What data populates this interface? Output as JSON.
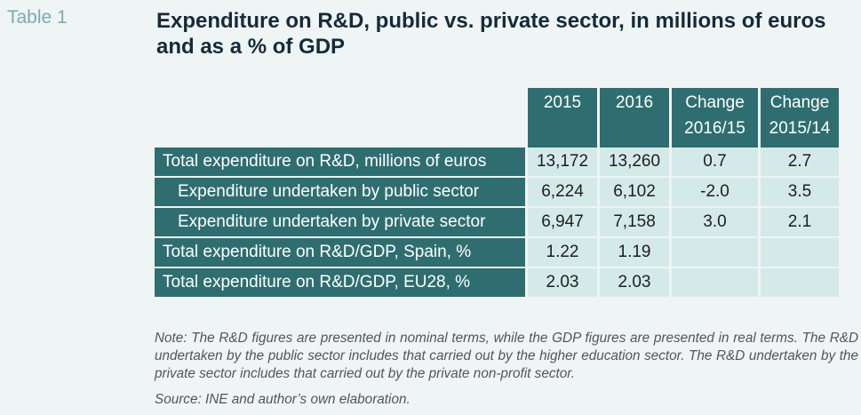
{
  "table_label": "Table 1",
  "title": "Expenditure on R&D, public vs. private sector, in millions of euros and as a % of GDP",
  "columns": [
    "2015",
    "2016",
    "Change 2016/15",
    "Change 2015/14"
  ],
  "column_lines": [
    [
      "2015"
    ],
    [
      "2016"
    ],
    [
      "Change",
      "2016/15"
    ],
    [
      "Change",
      "2015/14"
    ]
  ],
  "rows": [
    {
      "label": "Total expenditure on R&D, millions of euros",
      "values": [
        "13,172",
        "13,260",
        "0.7",
        "2.7"
      ]
    },
    {
      "label": "Expenditure undertaken by public sector",
      "values": [
        "6,224",
        "6,102",
        "-2.0",
        "3.5"
      ]
    },
    {
      "label": "Expenditure undertaken by private sector",
      "values": [
        "6,947",
        "7,158",
        "3.0",
        "2.1"
      ]
    },
    {
      "label": "Total expenditure on R&D/GDP, Spain, %",
      "values": [
        "1.22",
        "1.19",
        "",
        ""
      ]
    },
    {
      "label": "Total expenditure on R&D/GDP, EU28, %",
      "values": [
        "2.03",
        "2.03",
        "",
        ""
      ]
    }
  ],
  "note": "Note: The R&D figures are presented in nominal terms, while the GDP figures are presented in real terms. The R&D undertaken by the public sector includes that carried out by the higher education sector. The R&D undertaken by the private sector includes that carried out by the private non-profit sector.",
  "source": "Source: INE and author’s own elaboration.",
  "colors": {
    "header_bg": "#2f6e70",
    "cell_bg": "#d4eae8",
    "page_bg": "#eef5f4",
    "title": "#162a3a",
    "label": "#7fa8b2"
  }
}
